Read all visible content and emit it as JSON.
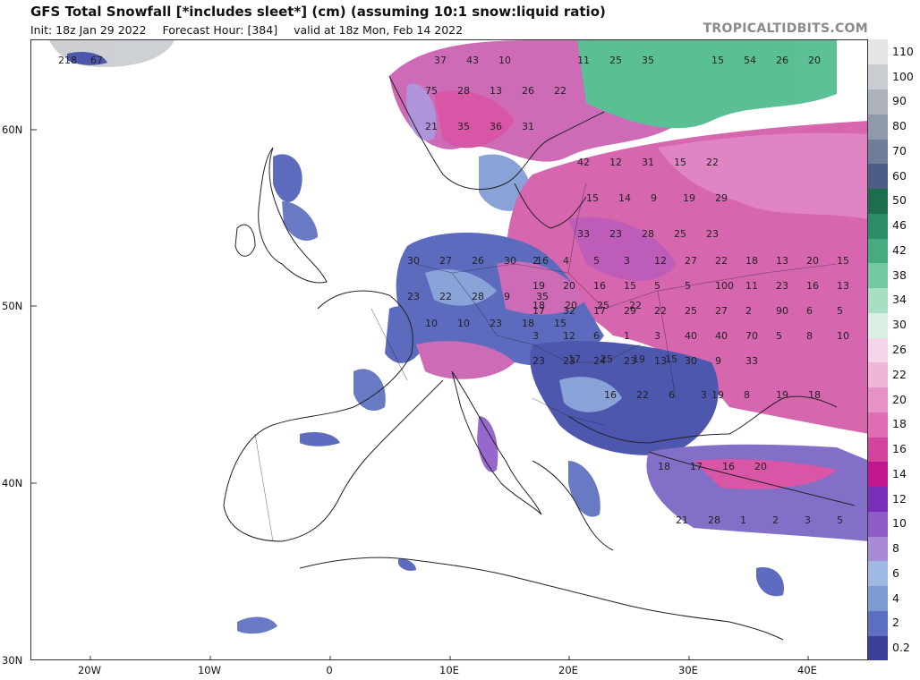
{
  "header": {
    "title": "GFS Total Snowfall [*includes sleet*] (cm) (assuming 10:1 snow:liquid ratio)",
    "init": "Init: 18z Jan 29 2022",
    "forecast_hour": "Forecast Hour: [384]",
    "valid": "valid at 18z Mon, Feb 14 2022",
    "credit": "TROPICALTIDBITS.COM"
  },
  "axes": {
    "lat_labels": [
      "60N",
      "50N",
      "40N",
      "30N"
    ],
    "lon_labels": [
      "20W",
      "10W",
      "0",
      "10E",
      "20E",
      "30E",
      "40E"
    ]
  },
  "colorbar": {
    "levels": [
      "0.2",
      "2",
      "4",
      "6",
      "8",
      "10",
      "12",
      "14",
      "16",
      "18",
      "20",
      "22",
      "26",
      "30",
      "34",
      "38",
      "42",
      "46",
      "50",
      "60",
      "70",
      "80",
      "90",
      "100",
      "110"
    ],
    "colors": [
      "#3a3f9a",
      "#5d6fc0",
      "#7f9bd4",
      "#9fb9e3",
      "#a98ad8",
      "#8e5cc8",
      "#7a2fb8",
      "#c2188f",
      "#d2449f",
      "#de6db3",
      "#e792c7",
      "#efb6d8",
      "#f5d6e8",
      "#d9f0e3",
      "#a8dfc4",
      "#72c8a2",
      "#45ac82",
      "#2b8d66",
      "#1c6e4d",
      "#4d5d86",
      "#6f7c9a",
      "#9099a9",
      "#aeb3bb",
      "#c9ccd0",
      "#e4e6e8"
    ]
  },
  "map": {
    "region": "Europe / Mediterranean",
    "value_labels": [
      "218",
      "67",
      "37",
      "43",
      "10",
      "11",
      "25",
      "35",
      "15",
      "54",
      "26",
      "20",
      "75",
      "28",
      "13",
      "26",
      "22",
      "21",
      "35",
      "36",
      "31",
      "42",
      "12",
      "31",
      "15",
      "22",
      "15",
      "14",
      "9",
      "19",
      "29",
      "33",
      "23",
      "28",
      "25",
      "23",
      "30",
      "27",
      "26",
      "30",
      "16",
      "23",
      "22",
      "28",
      "9",
      "35",
      "10",
      "10",
      "23",
      "18",
      "15",
      "18",
      "20",
      "25",
      "22",
      "17",
      "25",
      "19",
      "15",
      "16",
      "22",
      "6",
      "3",
      "19",
      "8",
      "19",
      "18",
      "18",
      "17",
      "16",
      "20",
      "21",
      "28",
      "1",
      "2",
      "3",
      "5",
      "2",
      "4",
      "5",
      "3",
      "12",
      "27",
      "22",
      "18",
      "13",
      "20",
      "15",
      "19",
      "20",
      "16",
      "15",
      "5",
      "5",
      "100",
      "11",
      "23",
      "16",
      "13",
      "17",
      "32",
      "17",
      "29",
      "22",
      "25",
      "27",
      "2",
      "90",
      "6",
      "5",
      "3",
      "12",
      "6",
      "1",
      "3",
      "40",
      "40",
      "70",
      "5",
      "8",
      "10",
      "23",
      "23",
      "24",
      "23",
      "13",
      "30",
      "9",
      "33"
    ]
  }
}
